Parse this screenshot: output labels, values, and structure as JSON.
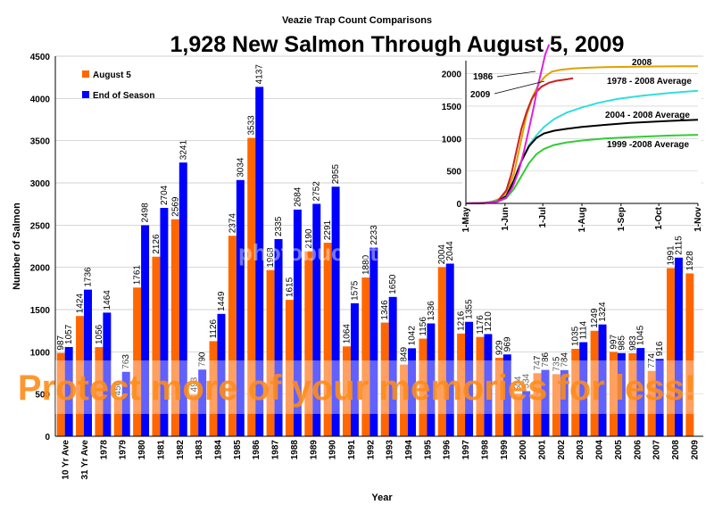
{
  "supertitle": "Veazie Trap Count Comparisons",
  "watermark": "Protect more of your memories for less!",
  "watermark_logo": "photobucket",
  "chart_data": [
    {
      "type": "bar",
      "title": "1,928 New Salmon Through August 5, 2009",
      "xlabel": "Year",
      "ylabel": "Number of Salmon",
      "ylim": [
        0,
        4500
      ],
      "yticks": [
        0,
        500,
        1000,
        1500,
        2000,
        2500,
        3000,
        3500,
        4000,
        4500
      ],
      "legend_position": "top-left",
      "categories": [
        "10 Yr Ave",
        "31 Yr Ave",
        "1978",
        "1979",
        "1980",
        "1981",
        "1982",
        "1983",
        "1984",
        "1985",
        "1986",
        "1987",
        "1988",
        "1989",
        "1990",
        "1991",
        "1992",
        "1993",
        "1994",
        "1995",
        "1996",
        "1997",
        "1998",
        "1999",
        "2000",
        "2001",
        "2002",
        "2003",
        "2004",
        "2005",
        "2006",
        "2007",
        "2008",
        "2009"
      ],
      "series": [
        {
          "name": "August 5",
          "color": "#ff6600",
          "values": [
            987,
            1424,
            1056,
            450,
            1761,
            2126,
            2569,
            493,
            1126,
            2374,
            3533,
            1968,
            1615,
            2190,
            2291,
            1064,
            1880,
            1346,
            849,
            1156,
            2004,
            1216,
            1176,
            929,
            504,
            747,
            735,
            1035,
            1249,
            997,
            983,
            774,
            1991,
            1928
          ]
        },
        {
          "name": "End of Season",
          "color": "#0000ff",
          "values": [
            1057,
            1736,
            1464,
            763,
            2498,
            2704,
            3241,
            790,
            1449,
            3034,
            4137,
            2335,
            2684,
            2752,
            2955,
            1575,
            2233,
            1650,
            1042,
            1336,
            2044,
            1355,
            1210,
            969,
            534,
            786,
            784,
            1114,
            1324,
            985,
            1045,
            916,
            2115,
            null
          ]
        }
      ]
    },
    {
      "type": "line",
      "title": "",
      "ylim": [
        0,
        2200
      ],
      "yticks": [
        0,
        500,
        1000,
        1500,
        2000
      ],
      "xtick_labels": [
        "1-May",
        "1-Jun",
        "1-Jul",
        "1-Aug",
        "1-Sep",
        "1-Oct",
        "1-Nov"
      ],
      "xlim_days": [
        0,
        184
      ],
      "xtick_days": [
        0,
        31,
        61,
        92,
        123,
        153,
        184
      ],
      "series": [
        {
          "name": "2008",
          "color": "#e0a000",
          "x": [
            0,
            10,
            20,
            28,
            33,
            38,
            43,
            48,
            53,
            58,
            63,
            68,
            75,
            85,
            95,
            110,
            130,
            150,
            170,
            184
          ],
          "y": [
            0,
            5,
            25,
            80,
            200,
            450,
            900,
            1350,
            1650,
            1850,
            1960,
            2030,
            2060,
            2080,
            2090,
            2100,
            2105,
            2110,
            2113,
            2115
          ]
        },
        {
          "name": "1978 - 2008 Average",
          "color": "#33dddd",
          "x": [
            0,
            15,
            25,
            32,
            38,
            44,
            50,
            56,
            62,
            70,
            80,
            92,
            105,
            120,
            140,
            160,
            184
          ],
          "y": [
            0,
            10,
            40,
            120,
            350,
            650,
            900,
            1050,
            1180,
            1300,
            1400,
            1480,
            1550,
            1610,
            1660,
            1700,
            1736
          ]
        },
        {
          "name": "2004 - 2008 Average",
          "color": "#000000",
          "x": [
            0,
            15,
            25,
            32,
            38,
            44,
            50,
            56,
            62,
            70,
            80,
            92,
            110,
            130,
            160,
            184
          ],
          "y": [
            0,
            5,
            30,
            110,
            350,
            650,
            880,
            1010,
            1080,
            1120,
            1150,
            1180,
            1210,
            1240,
            1270,
            1290
          ]
        },
        {
          "name": "1999 -2008 Average",
          "color": "#33cc33",
          "x": [
            0,
            15,
            25,
            32,
            38,
            44,
            50,
            56,
            62,
            70,
            80,
            92,
            110,
            130,
            160,
            184
          ],
          "y": [
            0,
            5,
            25,
            80,
            220,
            420,
            620,
            760,
            840,
            900,
            940,
            970,
            1000,
            1020,
            1045,
            1057
          ]
        },
        {
          "name": "2009",
          "color": "#cc2222",
          "x": [
            0,
            15,
            25,
            32,
            36,
            40,
            44,
            48,
            52,
            56,
            60,
            66,
            72,
            79,
            85
          ],
          "y": [
            0,
            5,
            30,
            200,
            450,
            800,
            1150,
            1400,
            1600,
            1720,
            1800,
            1860,
            1890,
            1910,
            1928
          ]
        },
        {
          "name": "1986",
          "color": "#dd22dd",
          "x": [
            0,
            15,
            25,
            32,
            37,
            42,
            46,
            50,
            54,
            57,
            60,
            63,
            66
          ],
          "y": [
            0,
            5,
            25,
            90,
            250,
            500,
            800,
            1150,
            1500,
            1800,
            2050,
            2300,
            2450
          ]
        }
      ],
      "annotations": [
        "2008",
        "1978 - 2008 Average",
        "2004 - 2008 Average",
        "1999 -2008 Average",
        "1986",
        "2009"
      ]
    }
  ]
}
